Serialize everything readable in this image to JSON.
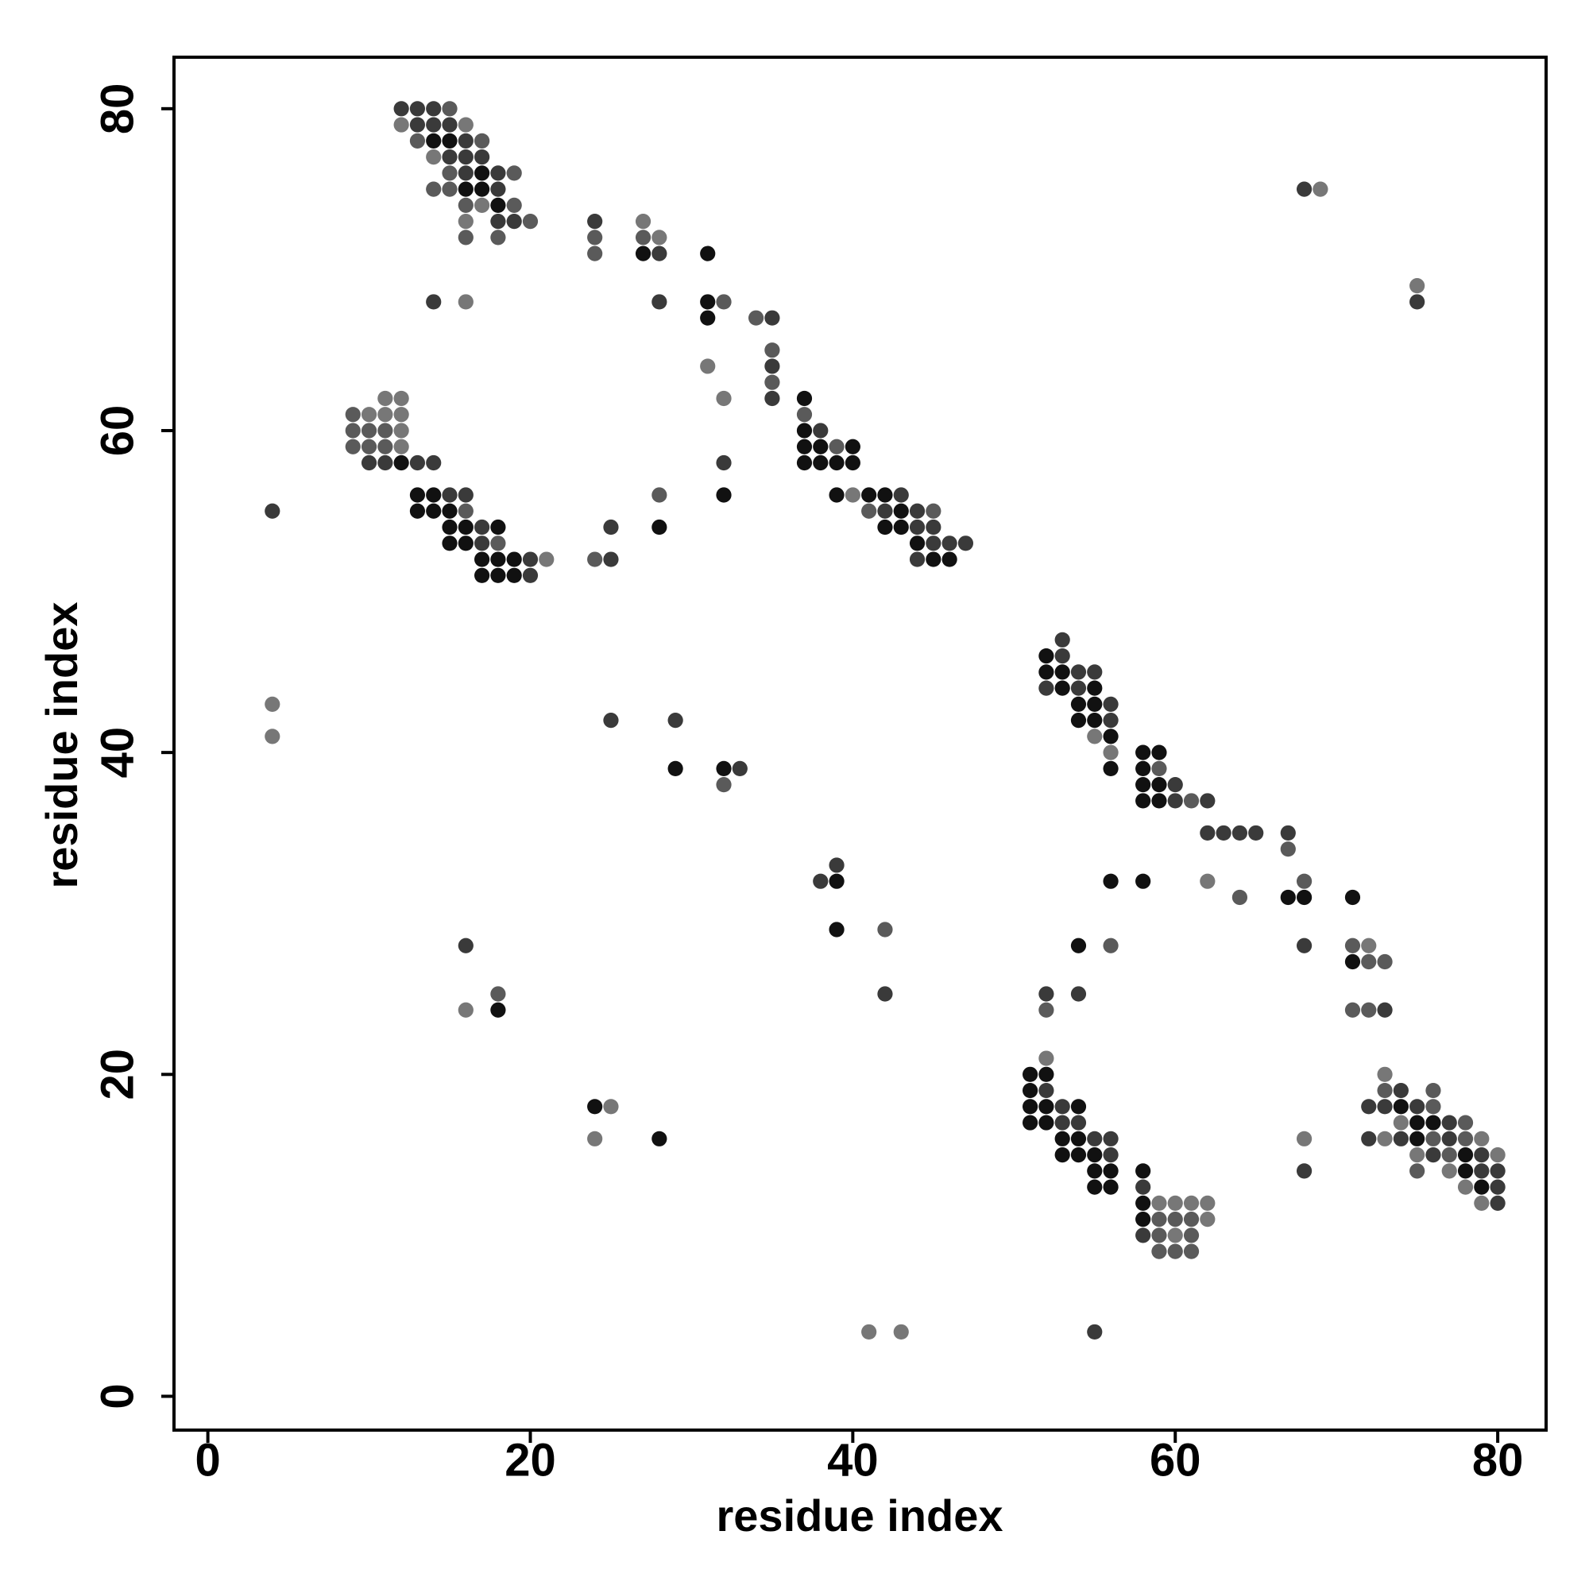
{
  "chart_data": {
    "type": "scatter",
    "xlabel": "residue index",
    "ylabel": "residue index",
    "xlim": [
      -2.1,
      83.0
    ],
    "ylim": [
      -2.1,
      83.2
    ],
    "xticks": [
      0,
      20,
      40,
      60,
      80
    ],
    "yticks": [
      0,
      20,
      40,
      60,
      80
    ],
    "x": [
      12,
      13,
      14,
      15,
      12,
      13,
      14,
      15,
      16,
      13,
      14,
      15,
      16,
      17,
      14,
      15,
      16,
      17,
      15,
      16,
      17,
      18,
      19,
      14,
      15,
      16,
      17,
      18,
      16,
      17,
      18,
      19,
      16,
      18,
      19,
      20,
      16,
      18,
      24,
      24,
      24,
      27,
      27,
      27,
      28,
      28,
      31,
      28,
      14,
      16,
      31,
      31,
      32,
      34,
      35,
      35,
      35,
      35,
      35,
      31,
      32,
      37,
      37,
      37,
      38,
      37,
      38,
      39,
      40,
      37,
      38,
      39,
      40,
      39,
      40,
      41,
      42,
      43,
      41,
      42,
      43,
      44,
      45,
      42,
      43,
      44,
      45,
      44,
      45,
      46,
      47,
      44,
      45,
      46,
      32,
      32,
      28,
      28,
      25,
      25,
      24,
      11,
      12,
      9,
      10,
      11,
      12,
      9,
      10,
      11,
      12,
      9,
      10,
      11,
      12,
      10,
      11,
      12,
      13,
      14,
      13,
      14,
      15,
      16,
      13,
      14,
      15,
      16,
      15,
      16,
      17,
      18,
      15,
      16,
      17,
      18,
      17,
      18,
      19,
      20,
      21,
      17,
      18,
      19,
      20,
      4,
      4,
      4,
      25,
      29,
      29,
      32,
      32,
      33,
      38,
      39,
      39,
      39,
      42,
      42,
      16,
      18,
      16,
      18,
      24,
      25,
      24,
      28,
      41,
      43,
      55,
      53,
      52,
      53,
      52,
      53,
      54,
      55,
      52,
      53,
      54,
      55,
      54,
      55,
      56,
      54,
      55,
      56,
      55,
      56,
      56,
      58,
      59,
      56,
      58,
      59,
      58,
      59,
      60,
      58,
      59,
      60,
      61,
      62,
      62,
      63,
      64,
      65,
      67,
      67,
      56,
      58,
      62,
      68,
      64,
      67,
      68,
      71,
      54,
      56,
      68,
      71,
      72,
      71,
      72,
      73,
      52,
      54,
      52,
      71,
      72,
      73,
      68,
      69,
      75,
      75,
      52,
      51,
      52,
      51,
      52,
      51,
      52,
      53,
      54,
      51,
      52,
      53,
      54,
      53,
      54,
      55,
      56,
      53,
      54,
      55,
      56,
      55,
      56,
      58,
      55,
      56,
      58,
      58,
      59,
      60,
      61,
      62,
      58,
      59,
      60,
      61,
      62,
      58,
      59,
      60,
      61,
      59,
      60,
      61,
      73,
      73,
      74,
      76,
      72,
      73,
      74,
      75,
      76,
      74,
      75,
      76,
      77,
      78,
      72,
      73,
      74,
      75,
      76,
      77,
      78,
      79,
      75,
      76,
      77,
      78,
      79,
      80,
      75,
      77,
      78,
      79,
      80,
      78,
      79,
      80,
      79,
      80,
      68,
      68
    ],
    "values": [
      80,
      80,
      80,
      80,
      79,
      79,
      79,
      79,
      79,
      78,
      78,
      78,
      78,
      78,
      77,
      77,
      77,
      77,
      76,
      76,
      76,
      76,
      76,
      75,
      75,
      75,
      75,
      75,
      74,
      74,
      74,
      74,
      73,
      73,
      73,
      73,
      72,
      72,
      73,
      72,
      71,
      73,
      72,
      71,
      72,
      71,
      71,
      68,
      68,
      68,
      68,
      67,
      68,
      67,
      67,
      65,
      64,
      63,
      62,
      64,
      62,
      62,
      61,
      60,
      60,
      59,
      59,
      59,
      59,
      58,
      58,
      58,
      58,
      56,
      56,
      56,
      56,
      56,
      55,
      55,
      55,
      55,
      55,
      54,
      54,
      54,
      54,
      53,
      53,
      53,
      53,
      52,
      52,
      52,
      58,
      56,
      56,
      54,
      54,
      52,
      52,
      62,
      62,
      61,
      61,
      61,
      61,
      60,
      60,
      60,
      60,
      59,
      59,
      59,
      59,
      58,
      58,
      58,
      58,
      58,
      56,
      56,
      56,
      56,
      55,
      55,
      55,
      55,
      54,
      54,
      54,
      54,
      53,
      53,
      53,
      53,
      52,
      52,
      52,
      52,
      52,
      51,
      51,
      51,
      51,
      55,
      43,
      41,
      42,
      42,
      39,
      39,
      38,
      39,
      32,
      33,
      32,
      29,
      29,
      25,
      28,
      25,
      24,
      24,
      18,
      18,
      16,
      16,
      4,
      4,
      4,
      47,
      46,
      46,
      45,
      45,
      45,
      45,
      44,
      44,
      44,
      44,
      43,
      43,
      43,
      42,
      42,
      42,
      41,
      41,
      40,
      40,
      40,
      39,
      39,
      39,
      38,
      38,
      38,
      37,
      37,
      37,
      37,
      37,
      35,
      35,
      35,
      35,
      35,
      34,
      32,
      32,
      32,
      32,
      31,
      31,
      31,
      31,
      28,
      28,
      28,
      28,
      28,
      27,
      27,
      27,
      25,
      25,
      24,
      24,
      24,
      24,
      75,
      75,
      69,
      68,
      21,
      20,
      20,
      19,
      19,
      18,
      18,
      18,
      18,
      17,
      17,
      17,
      17,
      16,
      16,
      16,
      16,
      15,
      15,
      15,
      15,
      14,
      14,
      14,
      13,
      13,
      13,
      12,
      12,
      12,
      12,
      12,
      11,
      11,
      11,
      11,
      11,
      10,
      10,
      10,
      10,
      9,
      9,
      9,
      20,
      19,
      19,
      19,
      18,
      18,
      18,
      18,
      18,
      17,
      17,
      17,
      17,
      17,
      16,
      16,
      16,
      16,
      16,
      16,
      16,
      16,
      15,
      15,
      15,
      15,
      15,
      15,
      14,
      14,
      14,
      14,
      14,
      13,
      13,
      13,
      12,
      12,
      16,
      14
    ],
    "colors": [
      "#3a3a3a",
      "#3a3a3a",
      "#3a3a3a",
      "#5a5a5a",
      "#777777",
      "#3a3a3a",
      "#3a3a3a",
      "#3a3a3a",
      "#777777",
      "#5a5a5a",
      "#111111",
      "#111111",
      "#3a3a3a",
      "#5a5a5a",
      "#777777",
      "#3a3a3a",
      "#3a3a3a",
      "#3a3a3a",
      "#5a5a5a",
      "#3a3a3a",
      "#111111",
      "#3a3a3a",
      "#5a5a5a",
      "#5a5a5a",
      "#5a5a5a",
      "#111111",
      "#111111",
      "#3a3a3a",
      "#5a5a5a",
      "#777777",
      "#111111",
      "#5a5a5a",
      "#777777",
      "#3a3a3a",
      "#3a3a3a",
      "#5a5a5a",
      "#5a5a5a",
      "#5a5a5a",
      "#3a3a3a",
      "#5a5a5a",
      "#5a5a5a",
      "#777777",
      "#5a5a5a",
      "#111111",
      "#777777",
      "#3a3a3a",
      "#111111",
      "#3a3a3a",
      "#3a3a3a",
      "#777777",
      "#111111",
      "#111111",
      "#5a5a5a",
      "#5a5a5a",
      "#3a3a3a",
      "#5a5a5a",
      "#3a3a3a",
      "#5a5a5a",
      "#3a3a3a",
      "#777777",
      "#777777",
      "#111111",
      "#5a5a5a",
      "#111111",
      "#3a3a3a",
      "#111111",
      "#111111",
      "#5a5a5a",
      "#111111",
      "#111111",
      "#111111",
      "#111111",
      "#111111",
      "#111111",
      "#777777",
      "#111111",
      "#111111",
      "#3a3a3a",
      "#5a5a5a",
      "#3a3a3a",
      "#111111",
      "#3a3a3a",
      "#5a5a5a",
      "#111111",
      "#111111",
      "#3a3a3a",
      "#3a3a3a",
      "#111111",
      "#3a3a3a",
      "#3a3a3a",
      "#3a3a3a",
      "#3a3a3a",
      "#111111",
      "#111111",
      "#3a3a3a",
      "#111111",
      "#5a5a5a",
      "#111111",
      "#3a3a3a",
      "#3a3a3a",
      "#5a5a5a",
      "#777777",
      "#777777",
      "#5a5a5a",
      "#777777",
      "#777777",
      "#777777",
      "#5a5a5a",
      "#5a5a5a",
      "#5a5a5a",
      "#777777",
      "#5a5a5a",
      "#5a5a5a",
      "#5a5a5a",
      "#777777",
      "#3a3a3a",
      "#3a3a3a",
      "#111111",
      "#3a3a3a",
      "#3a3a3a",
      "#111111",
      "#111111",
      "#3a3a3a",
      "#3a3a3a",
      "#111111",
      "#111111",
      "#111111",
      "#5a5a5a",
      "#111111",
      "#111111",
      "#3a3a3a",
      "#111111",
      "#111111",
      "#111111",
      "#3a3a3a",
      "#5a5a5a",
      "#111111",
      "#111111",
      "#111111",
      "#3a3a3a",
      "#777777",
      "#111111",
      "#111111",
      "#111111",
      "#3a3a3a",
      "#3a3a3a",
      "#777777",
      "#777777",
      "#3a3a3a",
      "#3a3a3a",
      "#111111",
      "#111111",
      "#5a5a5a",
      "#3a3a3a",
      "#3a3a3a",
      "#3a3a3a",
      "#111111",
      "#111111",
      "#5a5a5a",
      "#3a3a3a",
      "#3a3a3a",
      "#5a5a5a",
      "#777777",
      "#111111",
      "#111111",
      "#777777",
      "#777777",
      "#111111",
      "#777777",
      "#777777",
      "#3a3a3a",
      "#3a3a3a",
      "#111111",
      "#3a3a3a",
      "#111111",
      "#111111",
      "#3a3a3a",
      "#3a3a3a",
      "#3a3a3a",
      "#111111",
      "#3a3a3a",
      "#111111",
      "#111111",
      "#111111",
      "#3a3a3a",
      "#111111",
      "#111111",
      "#3a3a3a",
      "#777777",
      "#111111",
      "#777777",
      "#111111",
      "#111111",
      "#111111",
      "#111111",
      "#5a5a5a",
      "#111111",
      "#111111",
      "#3a3a3a",
      "#111111",
      "#111111",
      "#3a3a3a",
      "#5a5a5a",
      "#3a3a3a",
      "#3a3a3a",
      "#3a3a3a",
      "#3a3a3a",
      "#3a3a3a",
      "#3a3a3a",
      "#5a5a5a",
      "#111111",
      "#111111",
      "#777777",
      "#5a5a5a",
      "#5a5a5a",
      "#111111",
      "#111111",
      "#111111",
      "#111111",
      "#5a5a5a",
      "#3a3a3a",
      "#5a5a5a",
      "#777777",
      "#111111",
      "#5a5a5a",
      "#5a5a5a",
      "#3a3a3a",
      "#3a3a3a",
      "#5a5a5a",
      "#5a5a5a",
      "#5a5a5a",
      "#3a3a3a",
      "#3a3a3a",
      "#777777",
      "#777777",
      "#3a3a3a",
      "#777777",
      "#111111",
      "#111111",
      "#111111",
      "#3a3a3a",
      "#111111",
      "#111111",
      "#3a3a3a",
      "#111111",
      "#111111",
      "#111111",
      "#3a3a3a",
      "#3a3a3a",
      "#111111",
      "#111111",
      "#3a3a3a",
      "#3a3a3a",
      "#111111",
      "#111111",
      "#111111",
      "#3a3a3a",
      "#111111",
      "#111111",
      "#111111",
      "#111111",
      "#111111",
      "#3a3a3a",
      "#111111",
      "#777777",
      "#777777",
      "#777777",
      "#777777",
      "#111111",
      "#5a5a5a",
      "#5a5a5a",
      "#5a5a5a",
      "#777777",
      "#3a3a3a",
      "#5a5a5a",
      "#777777",
      "#5a5a5a",
      "#5a5a5a",
      "#5a5a5a",
      "#5a5a5a",
      "#777777",
      "#5a5a5a",
      "#3a3a3a",
      "#5a5a5a",
      "#3a3a3a",
      "#3a3a3a",
      "#111111",
      "#3a3a3a",
      "#5a5a5a",
      "#777777",
      "#111111",
      "#111111",
      "#3a3a3a",
      "#5a5a5a",
      "#3a3a3a",
      "#777777",
      "#3a3a3a",
      "#111111",
      "#5a5a5a",
      "#3a3a3a",
      "#5a5a5a",
      "#777777",
      "#777777",
      "#3a3a3a",
      "#5a5a5a",
      "#111111",
      "#3a3a3a",
      "#777777",
      "#5a5a5a",
      "#777777",
      "#111111",
      "#3a3a3a",
      "#3a3a3a",
      "#777777",
      "#111111",
      "#3a3a3a",
      "#777777",
      "#3a3a3a",
      "#777777",
      "#3a3a3a"
    ]
  }
}
